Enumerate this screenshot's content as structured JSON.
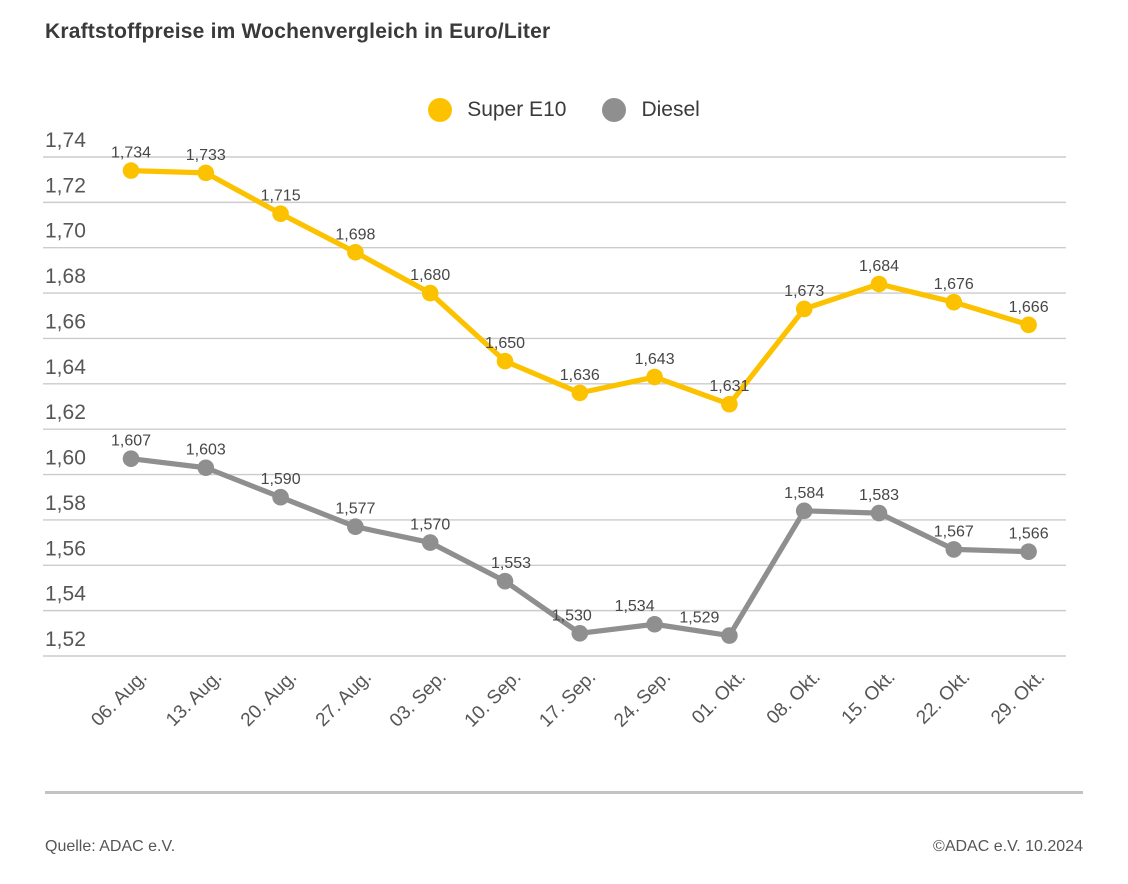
{
  "title": "Kraftstoffpreise im Wochenvergleich in Euro/Liter",
  "footer": {
    "source_left": "Quelle: ADAC e.V.",
    "source_right": "©ADAC e.V. 10.2024"
  },
  "chart_data": {
    "type": "line",
    "title": "Kraftstoffpreise im Wochenvergleich in Euro/Liter",
    "unit": "Euro/Liter",
    "xlabel": "",
    "ylabel": "",
    "ylim": [
      1.52,
      1.74
    ],
    "grid": true,
    "grid_color": "#cccccc",
    "legend_position": "top-center",
    "x": [
      "06. Aug.",
      "13. Aug.",
      "20. Aug.",
      "27. Aug.",
      "03. Sep.",
      "10. Sep.",
      "17. Sep.",
      "24. Sep.",
      "01. Okt.",
      "08. Okt.",
      "15. Okt.",
      "22. Okt.",
      "29. Okt."
    ],
    "y_axis": {
      "labels": [
        "1,74",
        "1,72",
        "1,70",
        "1,68",
        "1,66",
        "1,64",
        "1,62",
        "1,60",
        "1,58",
        "1,56",
        "1,54",
        "1,52"
      ],
      "values": [
        1.74,
        1.72,
        1.7,
        1.68,
        1.66,
        1.64,
        1.62,
        1.6,
        1.58,
        1.56,
        1.54,
        1.52
      ]
    },
    "series": [
      {
        "id": "super-e10",
        "name": "Super E10",
        "color": "#fcc200",
        "values": [
          1.734,
          1.733,
          1.715,
          1.698,
          1.68,
          1.65,
          1.636,
          1.643,
          1.631,
          1.673,
          1.684,
          1.676,
          1.666
        ],
        "labels": [
          "1,734",
          "1,733",
          "1,715",
          "1,698",
          "1,680",
          "1,650",
          "1,636",
          "1,643",
          "1,631",
          "1,673",
          "1,684",
          "1,676",
          "1,666"
        ],
        "label_dx": [
          0,
          0,
          0,
          0,
          0,
          0,
          0,
          0,
          0,
          0,
          0,
          0,
          0
        ]
      },
      {
        "id": "diesel",
        "name": "Diesel",
        "color": "#8f8f8f",
        "values": [
          1.607,
          1.603,
          1.59,
          1.577,
          1.57,
          1.553,
          1.53,
          1.534,
          1.529,
          1.584,
          1.583,
          1.567,
          1.566
        ],
        "labels": [
          "1,607",
          "1,603",
          "1,590",
          "1,577",
          "1,570",
          "1,553",
          "1,530",
          "1,534",
          "1,529",
          "1,584",
          "1,583",
          "1,567",
          "1,566"
        ],
        "label_dx": [
          0,
          0,
          0,
          0,
          0,
          6,
          -8,
          -20,
          -30,
          0,
          0,
          0,
          0
        ]
      }
    ]
  }
}
